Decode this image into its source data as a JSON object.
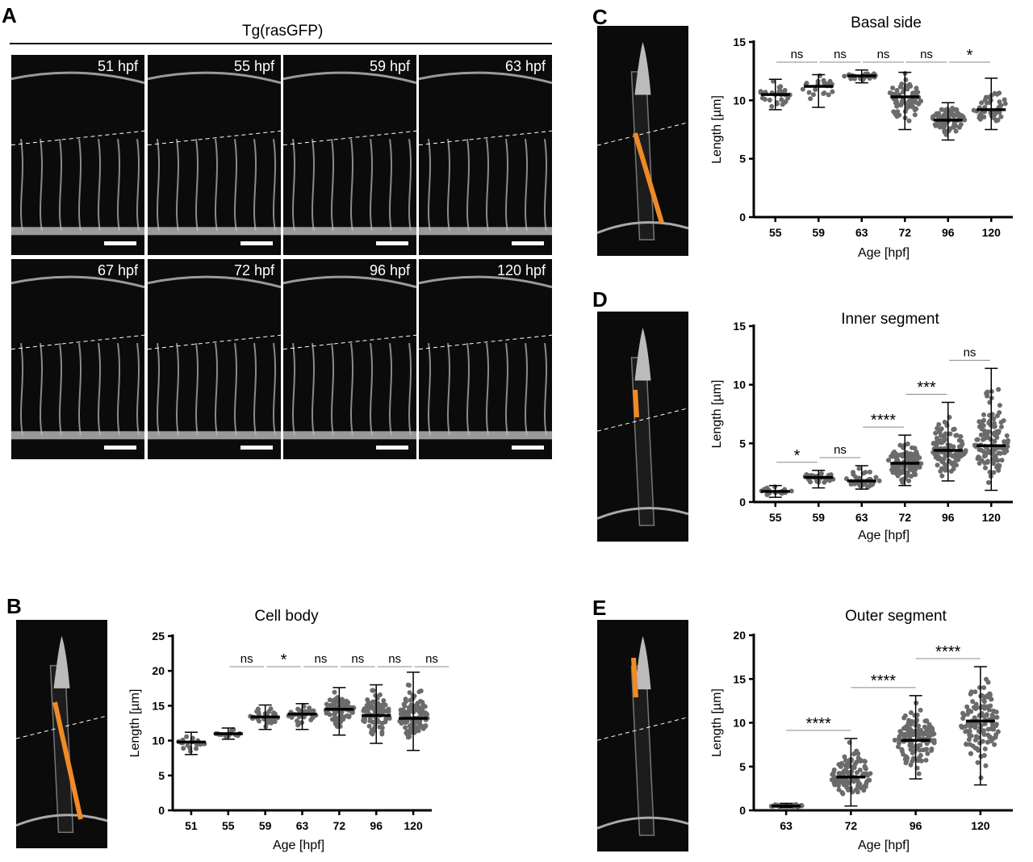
{
  "panel_a": {
    "letter": "A",
    "header": "Tg(rasGFP)",
    "tiles": [
      "51 hpf",
      "55 hpf",
      "59 hpf",
      "63 hpf",
      "67 hpf",
      "72 hpf",
      "96 hpf",
      "120 hpf"
    ]
  },
  "chart_data": [
    {
      "id": "B",
      "letter": "B",
      "type": "scatter",
      "title": "Cell body",
      "xlabel": "Age [hpf]",
      "ylabel": "Length [µm]",
      "ylim": [
        0,
        25
      ],
      "yticks": [
        0,
        5,
        10,
        15,
        20,
        25
      ],
      "categories": [
        "51",
        "55",
        "59",
        "63",
        "72",
        "96",
        "120"
      ],
      "mean": [
        9.8,
        11.0,
        13.4,
        13.8,
        14.5,
        13.6,
        13.2
      ],
      "min": [
        8.0,
        10.2,
        11.6,
        11.6,
        10.8,
        9.6,
        8.6
      ],
      "max": [
        11.2,
        11.8,
        15.1,
        15.3,
        17.6,
        18.0,
        19.8
      ],
      "n": [
        22,
        14,
        35,
        35,
        80,
        90,
        110
      ],
      "significance": [
        {
          "from": 1,
          "to": 2,
          "label": "ns"
        },
        {
          "from": 2,
          "to": 3,
          "label": "*"
        },
        {
          "from": 3,
          "to": 4,
          "label": "ns"
        },
        {
          "from": 4,
          "to": 5,
          "label": "ns"
        },
        {
          "from": 5,
          "to": 6,
          "label": "ns"
        },
        {
          "from": 6,
          "to": 7,
          "label": "ns"
        }
      ]
    },
    {
      "id": "C",
      "letter": "C",
      "type": "scatter",
      "title": "Basal side",
      "xlabel": "Age [hpf]",
      "ylabel": "Length [µm]",
      "ylim": [
        0,
        15
      ],
      "yticks": [
        0,
        5,
        10,
        15
      ],
      "categories": [
        "55",
        "59",
        "63",
        "72",
        "96",
        "120"
      ],
      "mean": [
        10.5,
        11.2,
        12.1,
        10.3,
        8.3,
        9.2
      ],
      "min": [
        9.2,
        9.4,
        11.5,
        7.5,
        6.6,
        7.5
      ],
      "max": [
        11.8,
        12.2,
        12.6,
        12.4,
        9.8,
        11.9
      ],
      "n": [
        30,
        25,
        25,
        60,
        80,
        40
      ],
      "significance": [
        {
          "from": 0,
          "to": 1,
          "label": "ns"
        },
        {
          "from": 1,
          "to": 2,
          "label": "ns"
        },
        {
          "from": 2,
          "to": 3,
          "label": "ns"
        },
        {
          "from": 3,
          "to": 4,
          "label": "ns"
        },
        {
          "from": 4,
          "to": 5,
          "label": "*"
        }
      ]
    },
    {
      "id": "D",
      "letter": "D",
      "type": "scatter",
      "title": "Inner segment",
      "xlabel": "Age [hpf]",
      "ylabel": "Length [µm]",
      "ylim": [
        0,
        15
      ],
      "yticks": [
        0,
        5,
        10,
        15
      ],
      "categories": [
        "55",
        "59",
        "63",
        "72",
        "96",
        "120"
      ],
      "mean": [
        0.9,
        2.1,
        1.8,
        3.3,
        4.4,
        4.8
      ],
      "min": [
        0.4,
        1.2,
        1.1,
        1.4,
        1.8,
        1.0
      ],
      "max": [
        1.4,
        2.7,
        3.1,
        5.7,
        8.5,
        11.4
      ],
      "n": [
        20,
        30,
        40,
        100,
        110,
        120
      ],
      "significance": [
        {
          "from": 0,
          "to": 1,
          "label": "*"
        },
        {
          "from": 1,
          "to": 2,
          "label": "ns"
        },
        {
          "from": 2,
          "to": 3,
          "label": "****"
        },
        {
          "from": 3,
          "to": 4,
          "label": "***"
        },
        {
          "from": 4,
          "to": 5,
          "label": "ns"
        }
      ]
    },
    {
      "id": "E",
      "letter": "E",
      "type": "scatter",
      "title": "Outer segment",
      "xlabel": "Age [hpf]",
      "ylabel": "Length [µm]",
      "ylim": [
        0,
        20
      ],
      "yticks": [
        0,
        5,
        10,
        15,
        20
      ],
      "categories": [
        "63",
        "72",
        "96",
        "120"
      ],
      "mean": [
        0.5,
        3.8,
        8.0,
        10.2
      ],
      "min": [
        0.3,
        0.5,
        3.6,
        2.9
      ],
      "max": [
        0.8,
        8.2,
        13.1,
        16.4
      ],
      "n": [
        25,
        110,
        130,
        130
      ],
      "significance": [
        {
          "from": 0,
          "to": 1,
          "label": "****"
        },
        {
          "from": 1,
          "to": 2,
          "label": "****"
        },
        {
          "from": 2,
          "to": 3,
          "label": "****"
        }
      ]
    }
  ]
}
